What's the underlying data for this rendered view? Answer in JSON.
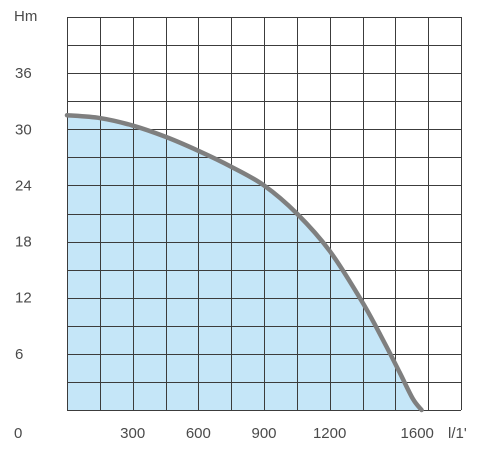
{
  "chart_data": {
    "type": "area",
    "title": "",
    "xlabel": "l/1'",
    "ylabel": "Hm",
    "origin_label": "0",
    "xlim": [
      0,
      1800
    ],
    "ylim": [
      0,
      42
    ],
    "x_ticks": [
      300,
      600,
      900,
      1200,
      1600
    ],
    "x_tick_labels": [
      "300",
      "600",
      "900",
      "1200",
      "1600"
    ],
    "y_ticks": [
      6,
      12,
      18,
      24,
      30,
      36
    ],
    "y_tick_labels": [
      "6",
      "12",
      "18",
      "24",
      "30",
      "36"
    ],
    "grid": true,
    "grid_x_step": 150,
    "grid_y_step": 3,
    "series": [
      {
        "x": [
          0,
          150,
          300,
          450,
          600,
          750,
          900,
          1050,
          1200,
          1350,
          1450,
          1520,
          1580,
          1620
        ],
        "y": [
          31.5,
          31.2,
          30.4,
          29.2,
          27.7,
          26.0,
          24.0,
          21.0,
          17.0,
          11.5,
          7.2,
          4.0,
          1.2,
          0
        ],
        "fill_color": "#c5e6f8",
        "line_color": "#7f7f7f"
      }
    ]
  }
}
